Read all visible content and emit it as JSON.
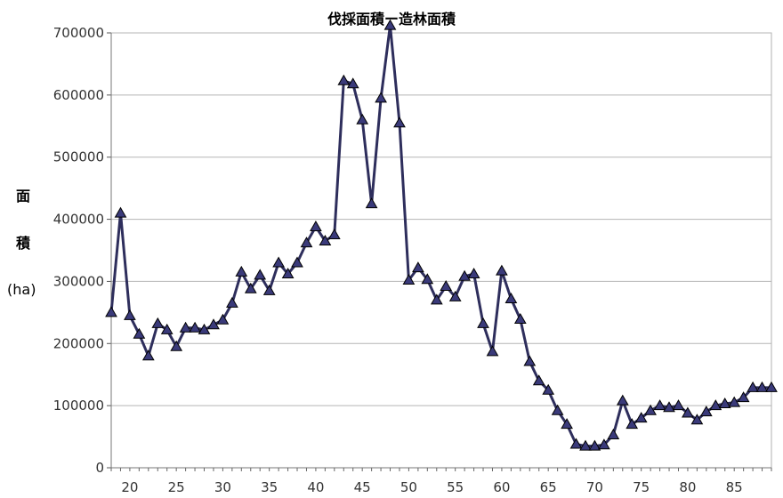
{
  "chart_data": {
    "type": "line",
    "title": "伐採面積ー造林面積",
    "ylabel_lines": [
      "面",
      "積",
      "(ha)"
    ],
    "xlabel": "",
    "xlim": [
      18,
      89
    ],
    "ylim": [
      0,
      700000
    ],
    "yticks": [
      0,
      100000,
      200000,
      300000,
      400000,
      500000,
      600000,
      700000
    ],
    "xticks": [
      20,
      25,
      30,
      35,
      40,
      45,
      50,
      55,
      60,
      65,
      70,
      75,
      80,
      85
    ],
    "grid": true,
    "legend": "none",
    "series": [
      {
        "color": "#2e2e5c",
        "marker": "triangle",
        "marker_fill": "#3a3a7a",
        "x": [
          18,
          19,
          20,
          21,
          22,
          23,
          24,
          25,
          26,
          27,
          28,
          29,
          30,
          31,
          32,
          33,
          34,
          35,
          36,
          37,
          38,
          39,
          40,
          41,
          42,
          43,
          44,
          45,
          46,
          47,
          48,
          49,
          50,
          51,
          52,
          53,
          54,
          55,
          56,
          57,
          58,
          59,
          60,
          61,
          62,
          63,
          64,
          65,
          66,
          67,
          68,
          69,
          70,
          71,
          72,
          73,
          74,
          75,
          76,
          77,
          78,
          79,
          80,
          81,
          82,
          83,
          84,
          85,
          86,
          87,
          88,
          89
        ],
        "values": [
          250000,
          410000,
          245000,
          215000,
          180000,
          232000,
          222000,
          195000,
          225000,
          225000,
          222000,
          230000,
          238000,
          265000,
          315000,
          288000,
          310000,
          285000,
          330000,
          312000,
          330000,
          362000,
          388000,
          365000,
          375000,
          623000,
          618000,
          560000,
          425000,
          595000,
          712000,
          555000,
          302000,
          322000,
          303000,
          270000,
          292000,
          275000,
          308000,
          312000,
          232000,
          187000,
          317000,
          272000,
          239000,
          171000,
          140000,
          125000,
          92000,
          70000,
          38000,
          35000,
          35000,
          37000,
          53000,
          108000,
          70000,
          80000,
          92000,
          100000,
          97000,
          100000,
          88000,
          77000,
          90000,
          100000,
          103000,
          105000,
          113000,
          129000,
          129000,
          129000
        ]
      }
    ]
  }
}
